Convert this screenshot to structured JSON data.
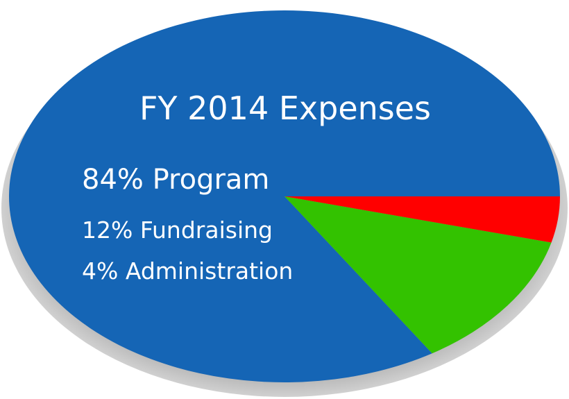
{
  "chart_data": {
    "type": "pie",
    "title": "FY 2014 Expenses",
    "slices": [
      {
        "label": "84% Program",
        "value": 84,
        "color": "#1565b5"
      },
      {
        "label": "12% Fundraising",
        "value": 12,
        "color": "#33c200"
      },
      {
        "label": "4% Administration",
        "value": 4,
        "color": "#ff0000"
      }
    ],
    "legend": "inside-left"
  }
}
